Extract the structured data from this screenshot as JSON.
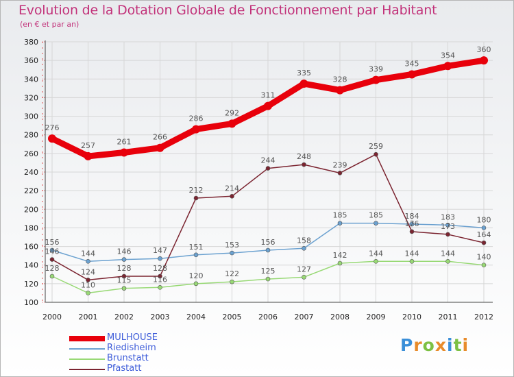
{
  "title": "Evolution de la Dotation Globale de Fonctionnement par Habitant",
  "subtitle": "(en € et par an)",
  "logo": {
    "text": "Proxiti",
    "letter_colors": [
      "#3a8fd8",
      "#e88b2a",
      "#7cc043",
      "#e88b2a",
      "#3a8fd8",
      "#7cc043",
      "#e88b2a"
    ]
  },
  "chart_data": {
    "type": "line",
    "x": [
      "2000",
      "2001",
      "2002",
      "2003",
      "2004",
      "2005",
      "2006",
      "2007",
      "2008",
      "2009",
      "2010",
      "2011",
      "2012"
    ],
    "ylim": [
      100,
      380
    ],
    "yticks": [
      100,
      120,
      140,
      160,
      180,
      200,
      220,
      240,
      260,
      280,
      300,
      320,
      340,
      360,
      380
    ],
    "grid": true,
    "legend_position": "bottom-left",
    "series": [
      {
        "name": "MULHOUSE",
        "color": "#e8000b",
        "values": [
          276,
          257,
          261,
          266,
          286,
          292,
          311,
          335,
          328,
          339,
          345,
          354,
          360
        ]
      },
      {
        "name": "Riedisheim",
        "color": "#6ba1d0",
        "values": [
          156,
          144,
          146,
          147,
          151,
          153,
          156,
          158,
          185,
          185,
          184,
          183,
          180
        ]
      },
      {
        "name": "Brunstatt",
        "color": "#98d975",
        "values": [
          128,
          110,
          115,
          116,
          120,
          122,
          125,
          127,
          142,
          144,
          144,
          144,
          140
        ]
      },
      {
        "name": "Pfastatt",
        "color": "#7b2430",
        "values": [
          146,
          124,
          128,
          128,
          212,
          214,
          244,
          248,
          239,
          259,
          176,
          173,
          164
        ]
      }
    ]
  }
}
